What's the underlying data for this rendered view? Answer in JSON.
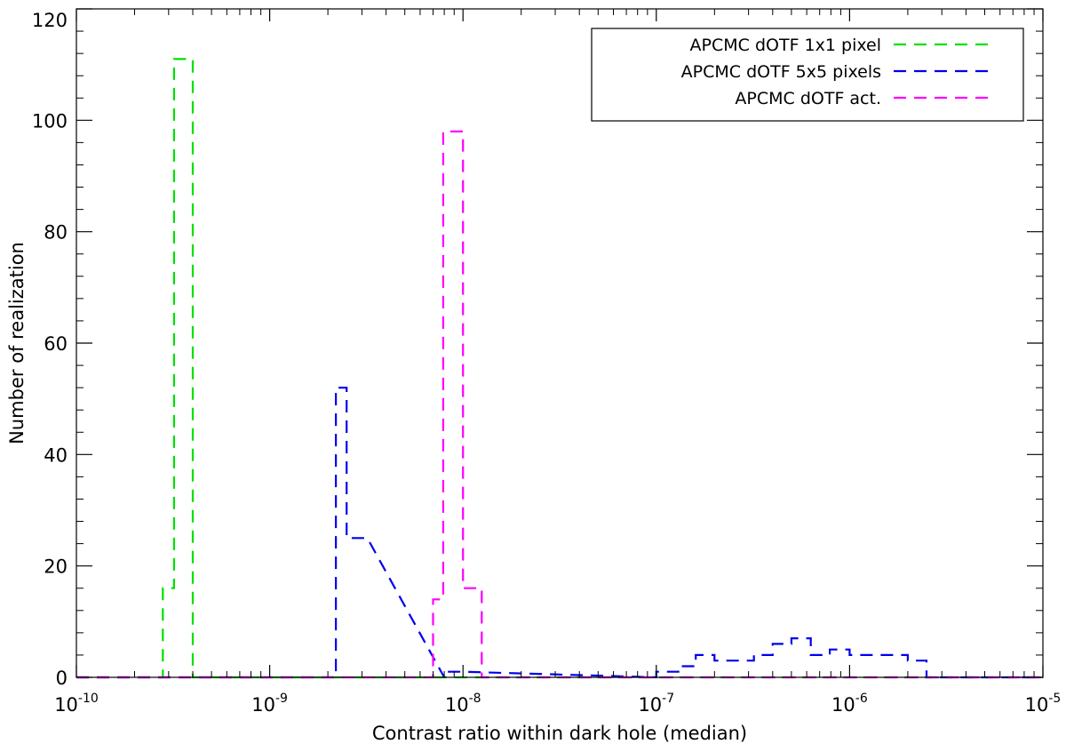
{
  "chart_data": {
    "type": "histogram",
    "xlabel": "Contrast ratio within dark hole (median)",
    "ylabel": "Number of realization",
    "x_scale": "log",
    "xlim": [
      1e-10,
      1e-05
    ],
    "ylim": [
      0,
      120
    ],
    "grid": false,
    "legend_placement": "top-right",
    "x_ticks": [
      {
        "base": "10",
        "exp": "-10",
        "value": 1e-10
      },
      {
        "base": "10",
        "exp": "-9",
        "value": 1e-09
      },
      {
        "base": "10",
        "exp": "-8",
        "value": 1e-08
      },
      {
        "base": "10",
        "exp": "-7",
        "value": 1e-07
      },
      {
        "base": "10",
        "exp": "-6",
        "value": 1e-06
      },
      {
        "base": "10",
        "exp": "-5",
        "value": 1e-05
      }
    ],
    "y_ticks": [
      {
        "label": "0",
        "value": 0
      },
      {
        "label": "20",
        "value": 20
      },
      {
        "label": "40",
        "value": 40
      },
      {
        "label": "60",
        "value": 60
      },
      {
        "label": "80",
        "value": 80
      },
      {
        "label": "100",
        "value": 100
      },
      {
        "label": "120",
        "value": 120
      }
    ],
    "series": [
      {
        "name": "APCMC dOTF 1x1 pixel",
        "color": "#00e000",
        "bins": [
          {
            "x0": 2.8e-10,
            "x1": 3.2e-10,
            "count": 16
          },
          {
            "x0": 3.2e-10,
            "x1": 4e-10,
            "count": 111
          }
        ]
      },
      {
        "name": "APCMC dOTF 5x5 pixels",
        "color": "#0000ee",
        "bins": [
          {
            "x0": 2.2e-09,
            "x1": 2.5e-09,
            "count": 52
          },
          {
            "x0": 2.5e-09,
            "x1": 3.2e-09,
            "count": 25
          },
          {
            "x0": 8e-09,
            "x1": 1e-08,
            "count": 1
          },
          {
            "x0": 1e-07,
            "x1": 1.3e-07,
            "count": 1
          },
          {
            "x0": 1.3e-07,
            "x1": 1.6e-07,
            "count": 2
          },
          {
            "x0": 1.6e-07,
            "x1": 2e-07,
            "count": 4
          },
          {
            "x0": 2e-07,
            "x1": 2.5e-07,
            "count": 3
          },
          {
            "x0": 2.5e-07,
            "x1": 3.2e-07,
            "count": 3
          },
          {
            "x0": 3.2e-07,
            "x1": 4e-07,
            "count": 4
          },
          {
            "x0": 4e-07,
            "x1": 5e-07,
            "count": 6
          },
          {
            "x0": 5e-07,
            "x1": 6.3e-07,
            "count": 7
          },
          {
            "x0": 6.3e-07,
            "x1": 7.9e-07,
            "count": 4
          },
          {
            "x0": 7.9e-07,
            "x1": 1e-06,
            "count": 5
          },
          {
            "x0": 1e-06,
            "x1": 1.6e-06,
            "count": 4
          },
          {
            "x0": 1.6e-06,
            "x1": 2e-06,
            "count": 4
          },
          {
            "x0": 2e-06,
            "x1": 2.5e-06,
            "count": 3
          }
        ]
      },
      {
        "name": "APCMC dOTF act.",
        "color": "#ff00ff",
        "bins": [
          {
            "x0": 7e-09,
            "x1": 7.9e-09,
            "count": 14
          },
          {
            "x0": 7.9e-09,
            "x1": 1e-08,
            "count": 98
          },
          {
            "x0": 1e-08,
            "x1": 1.25e-08,
            "count": 16
          }
        ]
      }
    ]
  }
}
